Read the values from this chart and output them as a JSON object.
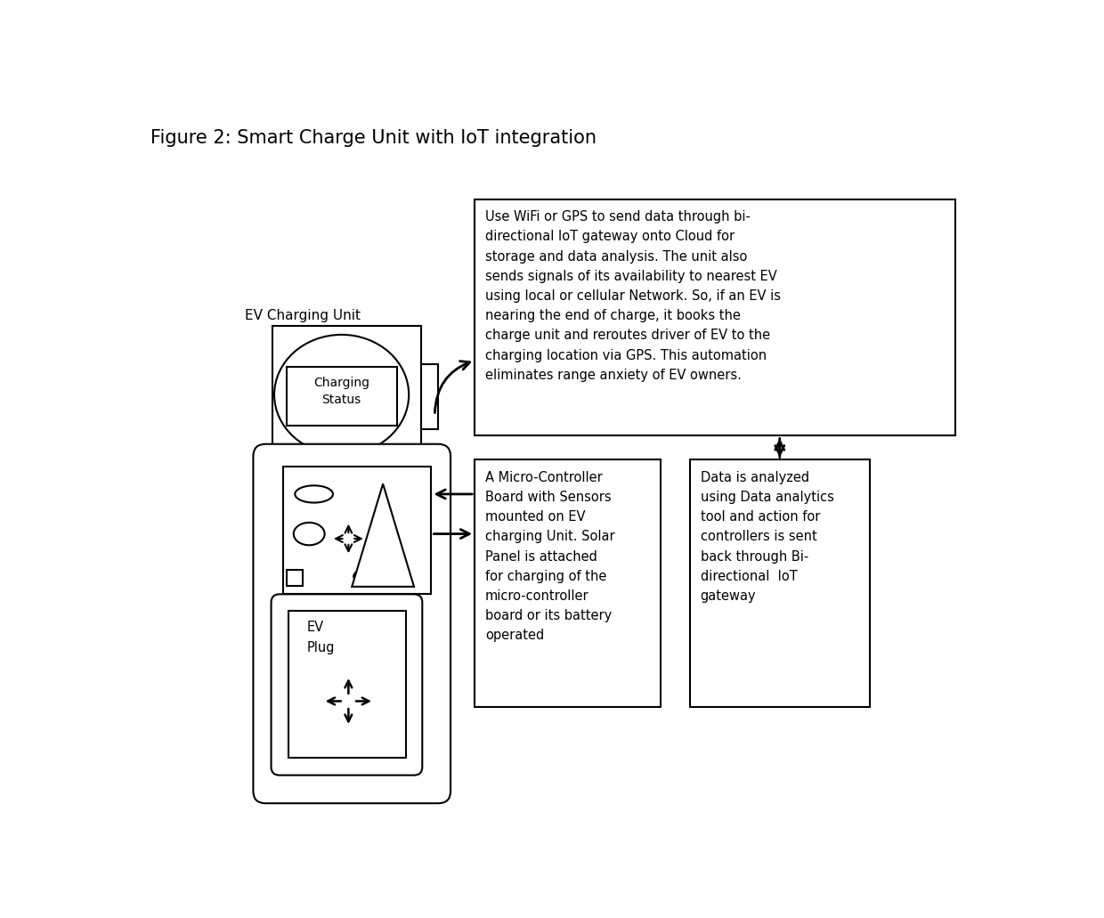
{
  "title": "Figure 2: Smart Charge Unit with IoT integration",
  "title_fontsize": 15,
  "bg_color": "#ffffff",
  "ec": "#000000",
  "lw": 1.5,
  "ev_unit_label": "EV Charging Unit",
  "charging_status_label": "Charging\nStatus",
  "ev_plug_label": "EV\nPlug",
  "iot_text": "Use WiFi or GPS to send data through bi-\ndirectional IoT gateway onto Cloud for\nstorage and data analysis. The unit also\nsends signals of its availability to nearest EV\nusing local or cellular Network. So, if an EV is\nnearing the end of charge, it books the\ncharge unit and reroutes driver of EV to the\ncharging location via GPS. This automation\neliminates range anxiety of EV owners.",
  "mc_text": "A Micro-Controller\nBoard with Sensors\nmounted on EV\ncharging Unit. Solar\nPanel is attached\nfor charging of the\nmicro-controller\nboard or its battery\noperated",
  "analytics_text": "Data is analyzed\nusing Data analytics\ntool and action for\ncontrollers is sent\nback through Bi-\ndirectional  IoT\ngateway"
}
